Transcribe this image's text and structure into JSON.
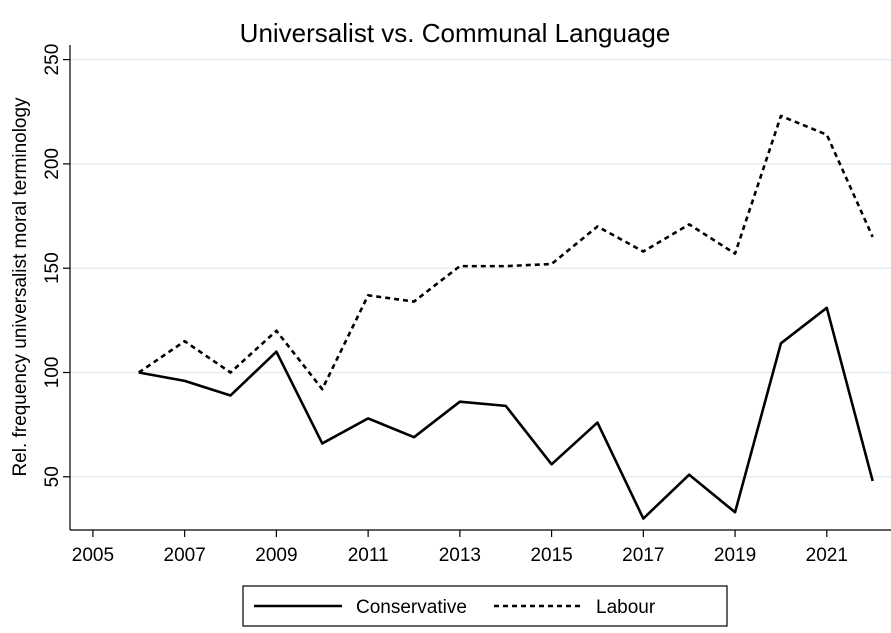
{
  "chart_data": {
    "type": "line",
    "title": "Universalist vs. Communal Language",
    "y_label": "Rel. frequency universalist moral terminology",
    "x": [
      2006,
      2007,
      2008,
      2009,
      2010,
      2011,
      2012,
      2013,
      2014,
      2015,
      2016,
      2017,
      2018,
      2019,
      2020,
      2021,
      2022
    ],
    "series": [
      {
        "name": "Conservative",
        "color": "#000000",
        "line_style": "solid",
        "values": [
          100,
          96,
          89,
          110,
          66,
          78,
          69,
          86,
          84,
          56,
          76,
          30,
          51,
          33,
          114,
          131,
          48
        ]
      },
      {
        "name": "Labour",
        "color": "#000000",
        "line_style": "dashed",
        "values": [
          100,
          115,
          100,
          120,
          92,
          137,
          134,
          151,
          151,
          152,
          170,
          158,
          171,
          157,
          223,
          214,
          165
        ]
      }
    ],
    "xlim": [
      2004.5,
      2022.4
    ],
    "xticks": [
      2005,
      2007,
      2009,
      2011,
      2013,
      2015,
      2017,
      2019,
      2021
    ],
    "ylim": [
      24.5,
      257
    ],
    "yticks": [
      50,
      100,
      150,
      200,
      250
    ],
    "grid": true,
    "legend": "bottom"
  }
}
